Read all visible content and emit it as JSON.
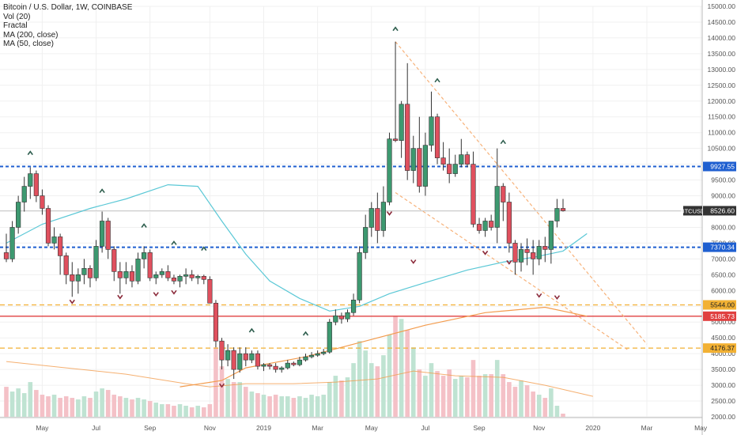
{
  "legend": {
    "title": "Bitcoin / U.S. Dollar, 1W, COINBASE",
    "indicators": [
      "Vol (20)",
      "Fractal",
      "MA (200, close)",
      "MA (50, close)"
    ]
  },
  "colors": {
    "up": "#3d9970",
    "down": "#e0505e",
    "vol_up": "#bfe3d2",
    "vol_down": "#f4c1c7",
    "ma50": "#5bc8d6",
    "ma200": "#f39c4e",
    "vol_ma": "#f39c4e",
    "blue_level": "#1f5fd0",
    "red_level": "#e04040",
    "orange_level": "#f2b134",
    "trend": "#f7b27a",
    "current": "#333333",
    "grid": "#f0f0f0"
  },
  "chart_data": {
    "type": "candlestick",
    "symbol": "BTCUSD",
    "ylim": [
      2000,
      15000
    ],
    "y_ticks": [
      2000,
      2500,
      3000,
      3500,
      4000,
      4500,
      5000,
      5500,
      6000,
      6500,
      7000,
      7500,
      8000,
      8500,
      9000,
      9500,
      10000,
      10500,
      11000,
      11500,
      12000,
      12500,
      13000,
      13500,
      14000,
      14500,
      15000
    ],
    "y_tick_labels": [
      "2000.00",
      "2500.00",
      "3000.00",
      "3500.00",
      "4000.00",
      "4500.00",
      "5000.00",
      "5500.00",
      "6000.00",
      "6500.00",
      "7000.00",
      "7500.00",
      "8000.00",
      "8500.00",
      "9000.00",
      "9500.00",
      "10000.00",
      "10500.00",
      "11000.00",
      "11500.00",
      "12000.00",
      "12500.00",
      "13000.00",
      "13500.00",
      "14000.00",
      "14500.00",
      "15000.00"
    ],
    "x_labels": [
      {
        "label": "May",
        "bar": 6
      },
      {
        "label": "Jul",
        "bar": 15
      },
      {
        "label": "Sep",
        "bar": 24
      },
      {
        "label": "Nov",
        "bar": 34
      },
      {
        "label": "2019",
        "bar": 43
      },
      {
        "label": "Mar",
        "bar": 52
      },
      {
        "label": "May",
        "bar": 61
      },
      {
        "label": "Jul",
        "bar": 70
      },
      {
        "label": "Sep",
        "bar": 79
      },
      {
        "label": "Nov",
        "bar": 89
      },
      {
        "label": "2020",
        "bar": 98
      },
      {
        "label": "Mar",
        "bar": 107
      },
      {
        "label": "May",
        "bar": 116
      }
    ],
    "candles": [
      [
        7200,
        7800,
        6900,
        7000
      ],
      [
        7000,
        8200,
        6900,
        8000
      ],
      [
        8000,
        9000,
        7800,
        8800
      ],
      [
        8800,
        9600,
        8500,
        9300
      ],
      [
        9300,
        9900,
        8900,
        9700
      ],
      [
        9700,
        9800,
        8800,
        9000
      ],
      [
        9000,
        9200,
        8400,
        8600
      ],
      [
        8600,
        8700,
        7400,
        7500
      ],
      [
        7500,
        8000,
        7300,
        7700
      ],
      [
        7700,
        7800,
        6500,
        7100
      ],
      [
        7100,
        7200,
        6200,
        6500
      ],
      [
        6500,
        6900,
        5800,
        6300
      ],
      [
        6300,
        6700,
        5900,
        6500
      ],
      [
        6500,
        7000,
        6200,
        6700
      ],
      [
        6700,
        6800,
        6100,
        6400
      ],
      [
        6400,
        7600,
        6300,
        7400
      ],
      [
        7400,
        8500,
        7200,
        8200
      ],
      [
        8200,
        8300,
        7000,
        7300
      ],
      [
        7300,
        7400,
        6300,
        6600
      ],
      [
        6600,
        6900,
        5900,
        6400
      ],
      [
        6400,
        6900,
        6200,
        6600
      ],
      [
        6600,
        6800,
        6100,
        6300
      ],
      [
        6300,
        7200,
        6200,
        7000
      ],
      [
        7000,
        7400,
        6700,
        7200
      ],
      [
        7200,
        7300,
        6300,
        6400
      ],
      [
        6400,
        6600,
        6200,
        6500
      ],
      [
        6500,
        6700,
        6400,
        6600
      ],
      [
        6600,
        6800,
        6300,
        6400
      ],
      [
        6400,
        6500,
        6200,
        6300
      ],
      [
        6300,
        6500,
        6100,
        6450
      ],
      [
        6450,
        6700,
        6200,
        6500
      ],
      [
        6500,
        6650,
        6300,
        6400
      ],
      [
        6400,
        6500,
        6200,
        6450
      ],
      [
        6450,
        6500,
        6200,
        6350
      ],
      [
        6350,
        6450,
        5600,
        5600
      ],
      [
        5600,
        5700,
        4200,
        4400
      ],
      [
        4400,
        4500,
        3500,
        3800
      ],
      [
        3800,
        4300,
        3600,
        4100
      ],
      [
        4100,
        4200,
        3200,
        3500
      ],
      [
        3500,
        4200,
        3400,
        4000
      ],
      [
        4000,
        4200,
        3600,
        3800
      ],
      [
        3800,
        4100,
        3700,
        4000
      ],
      [
        4000,
        4100,
        3500,
        3600
      ],
      [
        3600,
        3700,
        3450,
        3650
      ],
      [
        3650,
        3700,
        3500,
        3600
      ],
      [
        3600,
        3700,
        3400,
        3500
      ],
      [
        3500,
        3600,
        3400,
        3550
      ],
      [
        3550,
        3800,
        3500,
        3700
      ],
      [
        3700,
        3750,
        3600,
        3650
      ],
      [
        3650,
        3900,
        3600,
        3800
      ],
      [
        3800,
        4000,
        3750,
        3900
      ],
      [
        3900,
        4050,
        3850,
        3950
      ],
      [
        3950,
        4100,
        3900,
        4000
      ],
      [
        4000,
        4150,
        3950,
        4050
      ],
      [
        4050,
        5100,
        4000,
        5000
      ],
      [
        5000,
        5400,
        4900,
        5200
      ],
      [
        5200,
        5300,
        4950,
        5100
      ],
      [
        5100,
        5400,
        5000,
        5300
      ],
      [
        5300,
        5900,
        5200,
        5700
      ],
      [
        5700,
        7400,
        5600,
        7200
      ],
      [
        7200,
        8400,
        7000,
        8000
      ],
      [
        8000,
        8800,
        7700,
        8600
      ],
      [
        8600,
        9100,
        7500,
        7900
      ],
      [
        7900,
        9300,
        7700,
        8800
      ],
      [
        8800,
        11000,
        8700,
        10800
      ],
      [
        10800,
        13880,
        10700,
        10750
      ],
      [
        10750,
        12000,
        10200,
        11900
      ],
      [
        11900,
        13200,
        9500,
        9800
      ],
      [
        9800,
        10900,
        9400,
        10500
      ],
      [
        10500,
        11500,
        9100,
        9300
      ],
      [
        9300,
        11000,
        9000,
        10600
      ],
      [
        10600,
        12300,
        10400,
        11500
      ],
      [
        11500,
        11600,
        10000,
        10200
      ],
      [
        10200,
        10700,
        9800,
        10000
      ],
      [
        10000,
        10500,
        9400,
        9700
      ],
      [
        9700,
        10300,
        9600,
        10000
      ],
      [
        10000,
        10800,
        9900,
        10300
      ],
      [
        10300,
        10400,
        9900,
        10000
      ],
      [
        10000,
        10400,
        8000,
        8100
      ],
      [
        8100,
        8300,
        7800,
        7900
      ],
      [
        7900,
        8300,
        7700,
        8200
      ],
      [
        8200,
        8400,
        7900,
        8000
      ],
      [
        8000,
        10500,
        7500,
        9300
      ],
      [
        9300,
        9400,
        8200,
        8800
      ],
      [
        8800,
        9100,
        7200,
        7500
      ],
      [
        7500,
        7600,
        6500,
        6900
      ],
      [
        6900,
        7500,
        6600,
        7300
      ],
      [
        7300,
        7650,
        6800,
        7200
      ],
      [
        7200,
        7600,
        6500,
        7000
      ],
      [
        7000,
        7600,
        6800,
        7400
      ],
      [
        7400,
        7700,
        6900,
        7300
      ],
      [
        7300,
        8200,
        6850,
        8200
      ],
      [
        8200,
        8900,
        8000,
        8600
      ],
      [
        8600,
        8900,
        8500,
        8526.6
      ]
    ],
    "volumes": [
      2950,
      2800,
      2900,
      2750,
      3100,
      2850,
      2700,
      2650,
      2700,
      2600,
      2650,
      2600,
      2550,
      2650,
      2600,
      2800,
      2900,
      2850,
      2700,
      2650,
      2600,
      2550,
      2600,
      2550,
      2500,
      2450,
      2400,
      2400,
      2350,
      2400,
      2350,
      2300,
      2350,
      2300,
      2400,
      4200,
      3600,
      3200,
      3100,
      3100,
      2950,
      2800,
      2750,
      2700,
      2650,
      2700,
      2650,
      2650,
      2600,
      2650,
      2600,
      2700,
      2650,
      2700,
      3100,
      3300,
      3150,
      3250,
      3700,
      4400,
      4100,
      3700,
      3600,
      3950,
      4600,
      5200,
      5100,
      4750,
      4200,
      3500,
      3300,
      3700,
      3450,
      3300,
      3500,
      3200,
      3300,
      3250,
      3800,
      3300,
      3350,
      3350,
      3800,
      3350,
      3100,
      2950,
      3150,
      3000,
      2800,
      2700,
      2600,
      2900,
      2350,
      2100
    ],
    "ma50": [
      [
        0,
        7500
      ],
      [
        6,
        8100
      ],
      [
        14,
        8600
      ],
      [
        20,
        8900
      ],
      [
        27,
        9350
      ],
      [
        32,
        9300
      ],
      [
        36,
        8200
      ],
      [
        40,
        7150
      ],
      [
        44,
        6300
      ],
      [
        49,
        5750
      ],
      [
        54,
        5350
      ],
      [
        59,
        5500
      ],
      [
        64,
        5900
      ],
      [
        70,
        6250
      ],
      [
        77,
        6650
      ],
      [
        83,
        6900
      ],
      [
        88,
        7050
      ],
      [
        93,
        7250
      ],
      [
        97,
        7800
      ]
    ],
    "ma200": [
      [
        29,
        2950
      ],
      [
        36,
        3150
      ],
      [
        40,
        3550
      ],
      [
        50,
        3900
      ],
      [
        60,
        4400
      ],
      [
        70,
        4900
      ],
      [
        80,
        5300
      ],
      [
        90,
        5470
      ],
      [
        97,
        5185
      ]
    ],
    "vol_ma": [
      [
        0,
        3750
      ],
      [
        10,
        3550
      ],
      [
        20,
        3350
      ],
      [
        30,
        3050
      ],
      [
        34,
        2950
      ],
      [
        40,
        3050
      ],
      [
        48,
        3050
      ],
      [
        55,
        3100
      ],
      [
        62,
        3200
      ],
      [
        68,
        3450
      ],
      [
        75,
        3300
      ],
      [
        83,
        3250
      ],
      [
        90,
        3000
      ],
      [
        98,
        2650
      ]
    ],
    "levels": [
      {
        "price": 9927.55,
        "label": "9927.55",
        "kind": "blue"
      },
      {
        "price": 7370.34,
        "label": "7370.34",
        "kind": "blue"
      },
      {
        "price": 5544.0,
        "label": "5544.00",
        "kind": "orange"
      },
      {
        "price": 5185.73,
        "label": "5185.73",
        "kind": "red"
      },
      {
        "price": 4176.37,
        "label": "4176.37",
        "kind": "orange"
      }
    ],
    "current": {
      "price": 8526.6,
      "label": "8526.60",
      "symbol": "BTCUSD"
    },
    "trend_lines": [
      {
        "from": [
          65,
          13880
        ],
        "to": [
          107,
          4300
        ]
      },
      {
        "from": [
          65,
          9100
        ],
        "to": [
          104,
          4100
        ]
      }
    ],
    "fractals_up": [
      [
        4,
        10350
      ],
      [
        16,
        9150
      ],
      [
        23,
        8050
      ],
      [
        28,
        7500
      ],
      [
        33,
        7320
      ],
      [
        41,
        4730
      ],
      [
        50,
        4630
      ],
      [
        65,
        14280
      ],
      [
        72,
        12650
      ],
      [
        83,
        10700
      ]
    ],
    "fractals_down": [
      [
        11,
        5650
      ],
      [
        19,
        5800
      ],
      [
        25,
        5890
      ],
      [
        28,
        5950
      ],
      [
        36,
        3000
      ],
      [
        64,
        8450
      ],
      [
        68,
        6920
      ],
      [
        80,
        7200
      ],
      [
        84,
        6900
      ],
      [
        89,
        5850
      ],
      [
        92,
        5790
      ]
    ]
  }
}
